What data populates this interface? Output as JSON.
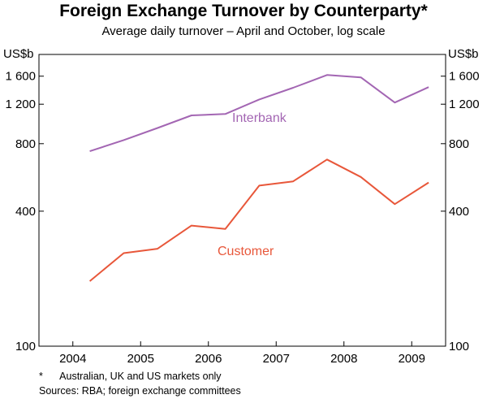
{
  "chart_data": {
    "type": "line",
    "title": "Foreign Exchange Turnover by Counterparty*",
    "subtitle": "Average daily turnover – April and October, log scale",
    "y_unit_left": "US$b",
    "y_unit_right": "US$b",
    "y_scale": "log",
    "ylim": [
      100,
      2000
    ],
    "y_ticks": [
      100,
      400,
      800,
      1200,
      1600
    ],
    "y_tick_labels_left": [
      "100",
      "400",
      "800",
      "1 200",
      "1 600"
    ],
    "y_tick_labels_right": [
      "100",
      "400",
      "800",
      "1 200",
      "1 600"
    ],
    "x_tick_labels": [
      "2004",
      "2005",
      "2006",
      "2007",
      "2008",
      "2009"
    ],
    "x": [
      2004.25,
      2004.75,
      2005.25,
      2005.75,
      2006.25,
      2006.75,
      2007.25,
      2007.75,
      2008.25,
      2008.75,
      2009.25
    ],
    "series": [
      {
        "name": "Interbank",
        "color": "#a366b3",
        "values": [
          740,
          830,
          940,
          1070,
          1085,
          1260,
          1420,
          1620,
          1580,
          1220,
          1430
        ]
      },
      {
        "name": "Customer",
        "color": "#e8573a",
        "values": [
          195,
          260,
          272,
          345,
          333,
          520,
          543,
          680,
          568,
          430,
          537
        ]
      }
    ],
    "grid": false
  },
  "notes": {
    "footnote_mark": "*",
    "footnote_text": "Australian, UK and US markets only",
    "sources": "Sources: RBA; foreign exchange committees"
  }
}
